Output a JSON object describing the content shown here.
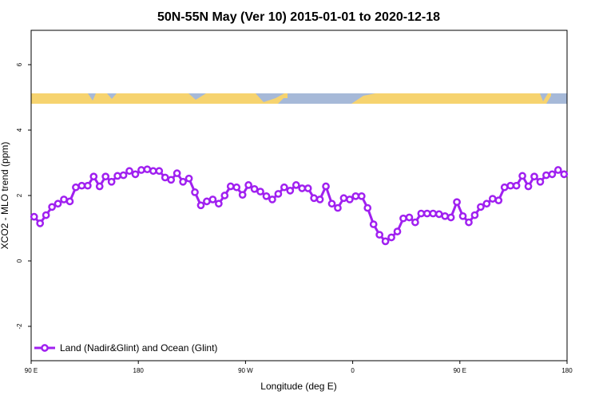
{
  "chart_data": {
    "type": "line",
    "title": "50N-55N May (Ver 10)   2015-01-01 to 2020-12-18",
    "xlabel": "Longitude (deg E)",
    "ylabel": "XCO2 - MLO trend (ppm)",
    "xlim": [
      90,
      540
    ],
    "ylim": [
      -3.05,
      7.05
    ],
    "xticks": [
      {
        "value": 90,
        "label": "90 E"
      },
      180,
      {
        "value": 270,
        "label": "90 W"
      },
      {
        "value": 360,
        "label": "0"
      },
      {
        "value": 450,
        "label": "90 E"
      },
      {
        "value": 540,
        "label": "180"
      }
    ],
    "yticks": [
      -2,
      0,
      2,
      4,
      6
    ],
    "legend": "bottom left",
    "x": [
      92.5,
      97.5,
      102.5,
      107.5,
      112.5,
      117.5,
      122.5,
      127.5,
      132.5,
      137.5,
      142.5,
      147.5,
      152.5,
      157.5,
      162.5,
      167.5,
      172.5,
      177.5,
      182.5,
      187.5,
      192.5,
      197.5,
      202.5,
      207.5,
      212.5,
      217.5,
      222.5,
      227.5,
      232.5,
      237.5,
      242.5,
      247.5,
      252.5,
      257.5,
      262.5,
      267.5,
      272.5,
      277.5,
      282.5,
      287.5,
      292.5,
      297.5,
      302.5,
      307.5,
      312.5,
      317.5,
      322.5,
      327.5,
      332.5,
      337.5,
      342.5,
      347.5,
      352.5,
      357.5,
      362.5,
      367.5,
      372.5,
      377.5,
      382.5,
      387.5,
      392.5,
      397.5,
      402.5,
      407.5,
      412.5,
      417.5,
      422.5,
      427.5,
      432.5,
      437.5,
      442.5,
      447.5,
      452.5,
      457.5,
      462.5,
      467.5,
      472.5,
      477.5,
      482.5,
      487.5,
      492.5,
      497.5,
      502.5,
      507.5,
      512.5,
      517.5,
      522.5,
      527.5,
      532.5,
      537.5
    ],
    "series": [
      {
        "name": "Land (Nadir&Glint) and Ocean (Glint)",
        "color": "#a020f0",
        "values": [
          1.35,
          1.15,
          1.4,
          1.65,
          1.75,
          1.88,
          1.82,
          2.25,
          2.3,
          2.3,
          2.58,
          2.28,
          2.58,
          2.42,
          2.6,
          2.62,
          2.75,
          2.65,
          2.78,
          2.8,
          2.75,
          2.75,
          2.55,
          2.48,
          2.68,
          2.42,
          2.52,
          2.1,
          1.7,
          1.82,
          1.88,
          1.75,
          2.0,
          2.28,
          2.25,
          2.02,
          2.32,
          2.2,
          2.12,
          1.98,
          1.88,
          2.05,
          2.25,
          2.15,
          2.32,
          2.22,
          2.22,
          1.92,
          1.88,
          2.28,
          1.75,
          1.62,
          1.92,
          1.88,
          1.98,
          1.98,
          1.62,
          1.12,
          0.8,
          0.6,
          0.72,
          0.9,
          1.3,
          1.33,
          1.18,
          1.45,
          1.45,
          1.45,
          1.43,
          1.37,
          1.33,
          1.8,
          1.37,
          1.18,
          1.4,
          1.65,
          1.75,
          1.9,
          1.85,
          2.25,
          2.3,
          2.3,
          2.6,
          2.28,
          2.58,
          2.42,
          2.62,
          2.65,
          2.78,
          2.65
        ]
      }
    ]
  }
}
